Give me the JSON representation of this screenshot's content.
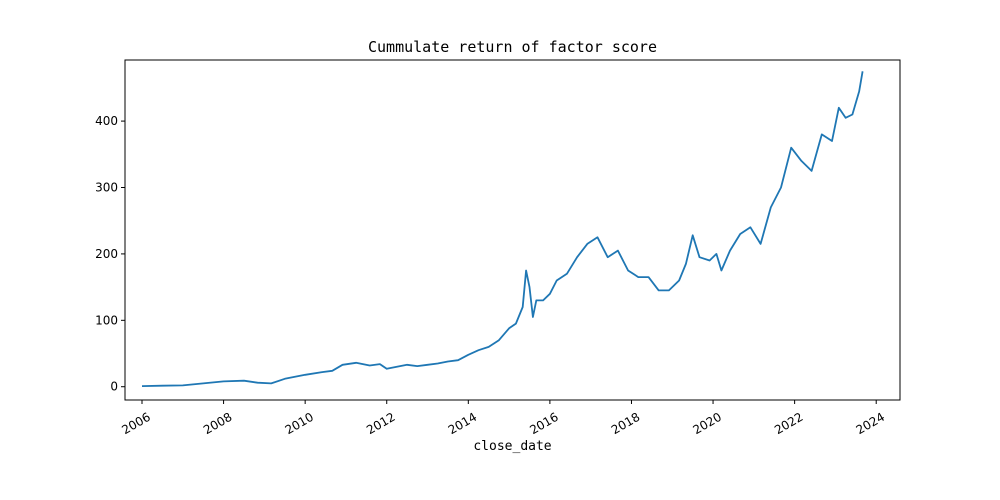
{
  "chart_data": {
    "type": "line",
    "title": "Cummulate return of factor score",
    "xlabel": "close_date",
    "ylabel": "",
    "xlim": [
      "2005-08-01",
      "2024-08-01"
    ],
    "ylim": [
      -20,
      492
    ],
    "grid": false,
    "x_ticks": [
      "2006",
      "2008",
      "2010",
      "2012",
      "2014",
      "2016",
      "2018",
      "2020",
      "2022",
      "2024"
    ],
    "y_ticks": [
      "0",
      "100",
      "200",
      "300",
      "400"
    ],
    "series": [
      {
        "color": "#1f77b4",
        "x": [
          "2006-01-01",
          "2006-07-01",
          "2007-01-01",
          "2007-07-01",
          "2008-01-01",
          "2008-07-01",
          "2008-11-01",
          "2009-03-01",
          "2009-07-01",
          "2010-01-01",
          "2010-06-01",
          "2010-09-01",
          "2010-12-01",
          "2011-04-01",
          "2011-08-01",
          "2011-11-01",
          "2012-01-01",
          "2012-04-01",
          "2012-07-01",
          "2012-10-01",
          "2013-01-01",
          "2013-04-01",
          "2013-07-01",
          "2013-10-01",
          "2014-01-01",
          "2014-04-01",
          "2014-07-01",
          "2014-10-01",
          "2015-01-01",
          "2015-03-01",
          "2015-05-01",
          "2015-06-01",
          "2015-07-01",
          "2015-08-01",
          "2015-09-01",
          "2015-11-01",
          "2016-01-01",
          "2016-03-01",
          "2016-06-01",
          "2016-09-01",
          "2016-12-01",
          "2017-03-01",
          "2017-06-01",
          "2017-09-01",
          "2017-12-01",
          "2018-03-01",
          "2018-06-01",
          "2018-09-01",
          "2018-12-01",
          "2019-03-01",
          "2019-05-01",
          "2019-07-01",
          "2019-09-01",
          "2019-12-01",
          "2020-02-01",
          "2020-03-15",
          "2020-06-01",
          "2020-09-01",
          "2020-12-01",
          "2021-03-01",
          "2021-06-01",
          "2021-09-01",
          "2021-12-01",
          "2022-03-01",
          "2022-06-01",
          "2022-09-01",
          "2022-12-01",
          "2023-02-01",
          "2023-04-01",
          "2023-06-01",
          "2023-08-01",
          "2023-09-01"
        ],
        "y": [
          1,
          1.5,
          2,
          5,
          8,
          9,
          6,
          5,
          12,
          18,
          22,
          24,
          33,
          36,
          32,
          34,
          27,
          30,
          33,
          31,
          33,
          35,
          38,
          40,
          48,
          55,
          60,
          70,
          88,
          95,
          120,
          175,
          150,
          105,
          130,
          130,
          140,
          160,
          170,
          195,
          215,
          225,
          195,
          205,
          175,
          165,
          165,
          145,
          145,
          160,
          185,
          228,
          195,
          190,
          200,
          175,
          205,
          230,
          240,
          215,
          270,
          300,
          360,
          340,
          325,
          380,
          370,
          420,
          405,
          410,
          445,
          475
        ]
      }
    ]
  }
}
